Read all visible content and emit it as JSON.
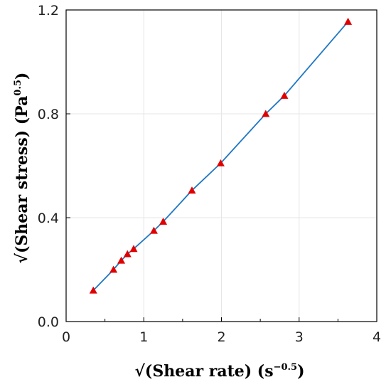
{
  "chart_data": {
    "type": "scatter",
    "title": "",
    "xlabel": "√(Shear rate) (s",
    "xlabel_sup": "−0.5",
    "xlabel_end": ")",
    "ylabel": "√(Shear stress) (Pa",
    "ylabel_sup": "0.5",
    "ylabel_end": ")",
    "xlim": [
      0,
      4
    ],
    "ylim": [
      0.0,
      1.2
    ],
    "x_ticks": [
      0,
      1,
      2,
      3,
      4
    ],
    "x_tick_labels": [
      "0",
      "1",
      "2",
      "3",
      "4"
    ],
    "y_ticks": [
      0.0,
      0.4,
      0.8,
      1.2
    ],
    "y_tick_labels": [
      "0.0",
      "0.4",
      "0.8",
      "1.2"
    ],
    "grid": true,
    "legend": "none",
    "series": [
      {
        "marker": "triangle",
        "marker_color": "#e00000",
        "line_color": "#1f77c4",
        "x": [
          0.35,
          0.61,
          0.71,
          0.79,
          0.87,
          1.13,
          1.25,
          1.62,
          1.99,
          2.57,
          2.81,
          3.63
        ],
        "y": [
          0.12,
          0.2,
          0.235,
          0.26,
          0.28,
          0.35,
          0.385,
          0.505,
          0.61,
          0.8,
          0.87,
          1.155
        ]
      }
    ]
  }
}
